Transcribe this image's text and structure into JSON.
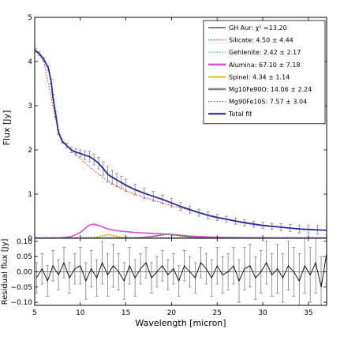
{
  "chart_data": [
    {
      "type": "line",
      "xlabel": "",
      "ylabel": "Flux [Jy]",
      "xlim": [
        5,
        37
      ],
      "ylim": [
        0,
        5
      ],
      "xticks": [
        5,
        10,
        15,
        20,
        25,
        30,
        35
      ],
      "yticks": [
        0,
        1,
        2,
        3,
        4,
        5
      ],
      "grid": false,
      "legend_position": "top-right",
      "series": [
        {
          "name": "GH Aur: χ² =13.20",
          "role": "data",
          "color": "#000000",
          "style": "solid-with-errorbars",
          "x": [
            5.1,
            5.5,
            6.0,
            6.5,
            6.8,
            7.0,
            7.3,
            7.6,
            8.0,
            8.5,
            9.0,
            9.5,
            10.0,
            10.5,
            11.0,
            11.5,
            12.0,
            12.5,
            13.0,
            13.5,
            14.0,
            14.5,
            15.0,
            16.0,
            17.0,
            18.0,
            19.0,
            20.0,
            21.0,
            22.0,
            23.0,
            24.0,
            25.0,
            26.0,
            27.0,
            28.0,
            29.0,
            30.0,
            31.0,
            32.0,
            33.0,
            34.0,
            35.0,
            36.0,
            37.0
          ],
          "y": [
            4.25,
            4.18,
            4.05,
            3.85,
            3.55,
            3.2,
            2.8,
            2.4,
            2.2,
            2.1,
            2.0,
            1.95,
            1.92,
            1.88,
            1.85,
            1.78,
            1.7,
            1.58,
            1.45,
            1.38,
            1.32,
            1.26,
            1.2,
            1.1,
            1.02,
            0.95,
            0.88,
            0.8,
            0.72,
            0.65,
            0.58,
            0.52,
            0.47,
            0.43,
            0.39,
            0.35,
            0.32,
            0.29,
            0.27,
            0.25,
            0.23,
            0.21,
            0.2,
            0.19,
            0.18
          ],
          "yerr": [
            0.04,
            0.04,
            0.04,
            0.05,
            0.05,
            0.06,
            0.06,
            0.05,
            0.05,
            0.05,
            0.06,
            0.07,
            0.08,
            0.1,
            0.12,
            0.12,
            0.13,
            0.15,
            0.18,
            0.16,
            0.15,
            0.14,
            0.14,
            0.12,
            0.12,
            0.11,
            0.1,
            0.1,
            0.09,
            0.08,
            0.08,
            0.08,
            0.07,
            0.07,
            0.07,
            0.07,
            0.07,
            0.07,
            0.07,
            0.08,
            0.08,
            0.09,
            0.09,
            0.1,
            0.1
          ]
        },
        {
          "name": "Silicate: 4.50 ± 4.44",
          "color": "#e03030",
          "style": "dotted",
          "x": [
            5.1,
            6.0,
            7.0,
            7.5,
            8.0,
            9.0,
            10.0,
            11.0,
            12.0,
            13.0,
            14.0,
            15.0,
            16.0,
            18.0,
            20.0,
            22.0,
            24.0,
            26.0,
            28.0,
            30.0,
            32.0,
            34.0,
            37.0
          ],
          "y": [
            4.25,
            4.0,
            3.0,
            2.5,
            2.2,
            2.0,
            1.8,
            1.62,
            1.45,
            1.3,
            1.18,
            1.08,
            0.99,
            0.86,
            0.74,
            0.63,
            0.53,
            0.44,
            0.37,
            0.3,
            0.25,
            0.21,
            0.18
          ]
        },
        {
          "name": "Gehlenite: 2.42 ± 2.17",
          "color": "#40c8e0",
          "style": "dotted",
          "x": [
            5.1,
            37.0
          ],
          "y": [
            0.01,
            0.01
          ]
        },
        {
          "name": "Alumina: 67.10 ± 7.18",
          "color": "#d850d0",
          "style": "solid",
          "x": [
            5.1,
            8.0,
            9.0,
            10.0,
            10.5,
            11.0,
            11.5,
            12.0,
            12.5,
            13.0,
            14.0,
            15.0,
            16.0,
            17.0,
            18.0,
            19.0,
            20.0,
            21.0,
            22.0,
            24.0,
            26.0,
            30.0,
            37.0
          ],
          "y": [
            0.0,
            0.01,
            0.04,
            0.13,
            0.22,
            0.3,
            0.32,
            0.29,
            0.25,
            0.21,
            0.17,
            0.15,
            0.13,
            0.12,
            0.11,
            0.1,
            0.09,
            0.07,
            0.05,
            0.03,
            0.02,
            0.01,
            0.0
          ]
        },
        {
          "name": "Spinel: 4.34 ± 1.14",
          "color": "#d8d030",
          "style": "solid",
          "x": [
            5.1,
            11.0,
            12.0,
            12.7,
            13.2,
            13.8,
            14.5,
            16.0,
            37.0
          ],
          "y": [
            0.0,
            0.0,
            0.03,
            0.07,
            0.08,
            0.05,
            0.02,
            0.0,
            0.0
          ]
        },
        {
          "name": "Mg10Fe90O: 14.06 ± 2.24",
          "color": "#808080",
          "style": "solid",
          "x": [
            5.1,
            15.0,
            17.0,
            18.5,
            19.5,
            20.5,
            22.0,
            24.0,
            26.0,
            37.0
          ],
          "y": [
            0.0,
            0.0,
            0.02,
            0.06,
            0.09,
            0.07,
            0.03,
            0.01,
            0.0,
            0.0
          ]
        },
        {
          "name": "Mg90Fe10S: 7.57 ± 3.04",
          "color": "#7a4ec8",
          "style": "dotted",
          "x": [
            5.1,
            37.0
          ],
          "y": [
            0.02,
            0.02
          ]
        },
        {
          "name": "Total fit",
          "color": "#2a2aa0",
          "style": "solid",
          "x": [
            5.1,
            5.5,
            6.0,
            6.5,
            6.8,
            7.0,
            7.3,
            7.6,
            8.0,
            8.5,
            9.0,
            9.5,
            10.0,
            10.5,
            11.0,
            11.5,
            12.0,
            12.5,
            13.0,
            13.5,
            14.0,
            14.5,
            15.0,
            16.0,
            17.0,
            18.0,
            19.0,
            20.0,
            21.0,
            22.0,
            23.0,
            24.0,
            25.0,
            26.0,
            27.0,
            28.0,
            29.0,
            30.0,
            31.0,
            32.0,
            33.0,
            34.0,
            35.0,
            36.0,
            37.0
          ],
          "y": [
            4.25,
            4.18,
            4.05,
            3.85,
            3.55,
            3.2,
            2.8,
            2.4,
            2.2,
            2.1,
            2.0,
            1.95,
            1.92,
            1.88,
            1.85,
            1.78,
            1.7,
            1.58,
            1.45,
            1.38,
            1.32,
            1.26,
            1.2,
            1.1,
            1.02,
            0.95,
            0.88,
            0.8,
            0.72,
            0.65,
            0.58,
            0.52,
            0.47,
            0.43,
            0.39,
            0.35,
            0.32,
            0.29,
            0.27,
            0.25,
            0.23,
            0.21,
            0.2,
            0.19,
            0.18
          ]
        }
      ]
    },
    {
      "type": "line",
      "xlabel": "Wavelength [micron]",
      "ylabel": "Residual flux [Jy]",
      "xlim": [
        5,
        37
      ],
      "ylim": [
        -0.11,
        0.11
      ],
      "xticks": [
        5,
        10,
        15,
        20,
        25,
        30,
        35
      ],
      "yticks": [
        -0.1,
        -0.05,
        0.0,
        0.05,
        0.1
      ],
      "ytick_labels": [
        "−0.10",
        "−0.05",
        "0.00",
        "0.05",
        "0.10"
      ],
      "grid": false,
      "series": [
        {
          "role": "residual",
          "color": "#000000",
          "style": "solid-with-errorbars",
          "x": [
            5.2,
            5.8,
            6.4,
            7.0,
            7.6,
            8.2,
            8.8,
            9.4,
            10.0,
            10.6,
            11.2,
            11.8,
            12.4,
            13.0,
            13.6,
            14.2,
            14.8,
            15.4,
            16.0,
            16.6,
            17.2,
            17.8,
            18.4,
            19.0,
            19.6,
            20.2,
            20.8,
            21.4,
            22.0,
            22.6,
            23.2,
            23.8,
            24.4,
            25.0,
            25.6,
            26.2,
            26.8,
            27.4,
            28.0,
            28.6,
            29.2,
            29.8,
            30.4,
            31.0,
            31.6,
            32.2,
            32.8,
            33.4,
            34.0,
            34.6,
            35.2,
            35.8,
            36.4,
            37.0
          ],
          "y": [
            -0.02,
            0.01,
            -0.03,
            0.02,
            -0.01,
            0.03,
            -0.02,
            0.01,
            0.02,
            -0.03,
            0.01,
            -0.02,
            0.03,
            -0.01,
            0.02,
            0.0,
            -0.03,
            0.02,
            -0.02,
            0.01,
            0.03,
            -0.02,
            0.0,
            0.02,
            -0.01,
            0.01,
            -0.03,
            0.02,
            0.0,
            -0.02,
            0.03,
            0.01,
            -0.02,
            0.02,
            -0.01,
            0.0,
            0.02,
            -0.03,
            0.01,
            0.02,
            -0.02,
            0.0,
            0.03,
            -0.01,
            0.01,
            -0.02,
            0.02,
            0.0,
            -0.03,
            0.02,
            -0.01,
            0.03,
            -0.05,
            0.06
          ],
          "yerr": [
            0.05,
            0.05,
            0.05,
            0.05,
            0.05,
            0.05,
            0.05,
            0.05,
            0.06,
            0.06,
            0.06,
            0.06,
            0.07,
            0.07,
            0.07,
            0.06,
            0.06,
            0.06,
            0.06,
            0.05,
            0.05,
            0.05,
            0.05,
            0.05,
            0.05,
            0.05,
            0.05,
            0.05,
            0.05,
            0.05,
            0.05,
            0.05,
            0.06,
            0.06,
            0.06,
            0.06,
            0.06,
            0.07,
            0.07,
            0.07,
            0.07,
            0.07,
            0.07,
            0.07,
            0.08,
            0.08,
            0.08,
            0.08,
            0.09,
            0.09,
            0.09,
            0.1,
            0.1,
            0.1
          ]
        }
      ]
    }
  ]
}
